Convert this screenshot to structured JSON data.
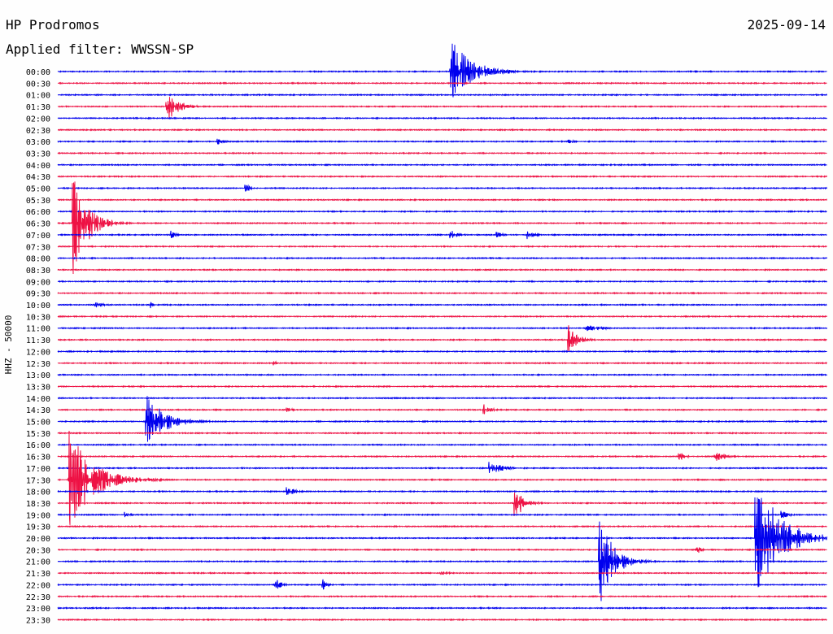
{
  "header": {
    "station": "HP Prodromos",
    "date": "2025-09-14",
    "filter": "Applied filter: WWSSN-SP"
  },
  "chart_data": {
    "type": "line",
    "title": "HP Prodromos",
    "ylabel": "HHZ - 50000",
    "trace_colors": [
      "#0000ee",
      "#ee1144"
    ],
    "row_labels": [
      "00:00",
      "00:30",
      "01:00",
      "01:30",
      "02:00",
      "02:30",
      "03:00",
      "03:30",
      "04:00",
      "04:30",
      "05:00",
      "05:30",
      "06:00",
      "06:30",
      "07:00",
      "07:30",
      "08:00",
      "08:30",
      "09:00",
      "09:30",
      "10:00",
      "10:30",
      "11:00",
      "11:30",
      "12:00",
      "12:30",
      "13:00",
      "13:30",
      "14:00",
      "14:30",
      "15:00",
      "15:30",
      "16:00",
      "16:30",
      "17:00",
      "17:30",
      "18:00",
      "18:30",
      "19:00",
      "19:30",
      "20:00",
      "20:30",
      "21:00",
      "21:30",
      "22:00",
      "22:30",
      "23:00",
      "23:30"
    ],
    "x_unit": "minutes within 30-min row",
    "xlim": [
      0,
      30
    ],
    "events": [
      {
        "row": "00:00",
        "t": 15.3,
        "amp": 42,
        "dur": 1.8
      },
      {
        "row": "01:30",
        "t": 4.2,
        "amp": 22,
        "dur": 1.0
      },
      {
        "row": "03:00",
        "t": 6.2,
        "amp": 5,
        "dur": 0.6
      },
      {
        "row": "03:00",
        "t": 19.9,
        "amp": 6,
        "dur": 0.4
      },
      {
        "row": "05:00",
        "t": 7.3,
        "amp": 6,
        "dur": 0.5
      },
      {
        "row": "06:30",
        "t": 0.55,
        "amp": 72,
        "dur": 1.2
      },
      {
        "row": "07:00",
        "t": 4.4,
        "amp": 6,
        "dur": 0.4
      },
      {
        "row": "07:00",
        "t": 15.3,
        "amp": 7,
        "dur": 0.6
      },
      {
        "row": "07:00",
        "t": 17.1,
        "amp": 5,
        "dur": 0.5
      },
      {
        "row": "07:00",
        "t": 18.3,
        "amp": 7,
        "dur": 0.6
      },
      {
        "row": "10:00",
        "t": 1.4,
        "amp": 4,
        "dur": 0.8
      },
      {
        "row": "10:00",
        "t": 3.6,
        "amp": 5,
        "dur": 0.3
      },
      {
        "row": "11:00",
        "t": 20.6,
        "amp": 4,
        "dur": 1.6
      },
      {
        "row": "11:30",
        "t": 19.9,
        "amp": 26,
        "dur": 0.7
      },
      {
        "row": "12:30",
        "t": 8.4,
        "amp": 4,
        "dur": 0.3
      },
      {
        "row": "14:30",
        "t": 8.9,
        "amp": 5,
        "dur": 0.5
      },
      {
        "row": "14:30",
        "t": 16.6,
        "amp": 8,
        "dur": 0.6
      },
      {
        "row": "15:00",
        "t": 3.4,
        "amp": 38,
        "dur": 1.5
      },
      {
        "row": "16:30",
        "t": 24.2,
        "amp": 8,
        "dur": 0.5
      },
      {
        "row": "16:30",
        "t": 25.6,
        "amp": 10,
        "dur": 0.8
      },
      {
        "row": "17:00",
        "t": 16.8,
        "amp": 11,
        "dur": 1.0
      },
      {
        "row": "17:30",
        "t": 0.4,
        "amp": 64,
        "dur": 2.0
      },
      {
        "row": "18:00",
        "t": 8.9,
        "amp": 7,
        "dur": 0.8
      },
      {
        "row": "18:30",
        "t": 17.8,
        "amp": 28,
        "dur": 0.7
      },
      {
        "row": "19:00",
        "t": 2.6,
        "amp": 5,
        "dur": 0.6
      },
      {
        "row": "19:00",
        "t": 28.2,
        "amp": 7,
        "dur": 0.6
      },
      {
        "row": "20:00",
        "t": 27.2,
        "amp": 86,
        "dur": 2.0
      },
      {
        "row": "20:30",
        "t": 24.9,
        "amp": 7,
        "dur": 0.4
      },
      {
        "row": "21:00",
        "t": 21.1,
        "amp": 62,
        "dur": 1.2
      },
      {
        "row": "21:30",
        "t": 14.9,
        "amp": 4,
        "dur": 0.6
      },
      {
        "row": "22:00",
        "t": 8.4,
        "amp": 14,
        "dur": 0.5
      },
      {
        "row": "22:00",
        "t": 10.3,
        "amp": 9,
        "dur": 0.4
      }
    ]
  }
}
